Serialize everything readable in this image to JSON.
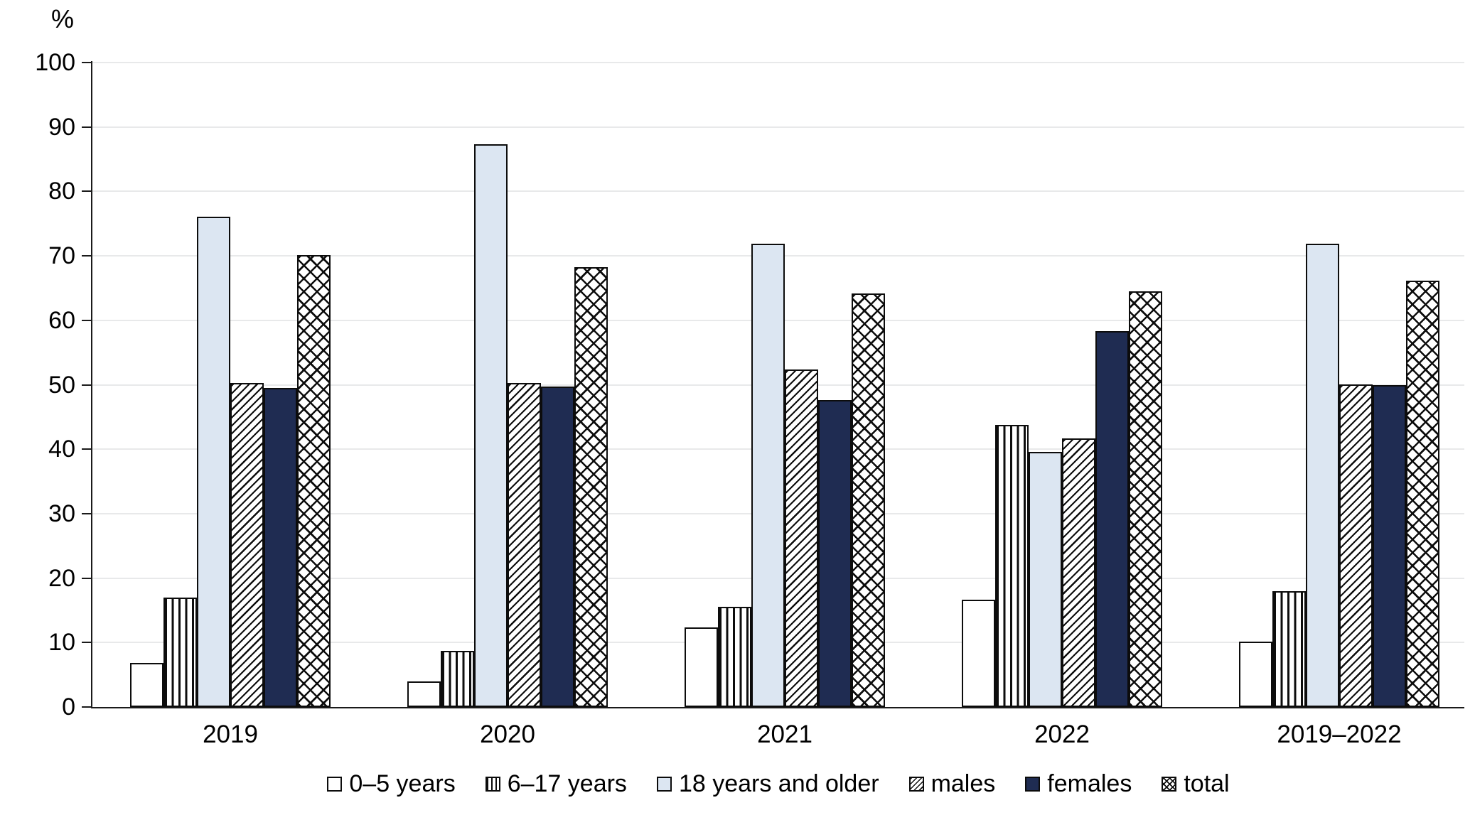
{
  "chart_data": {
    "type": "bar",
    "title": "",
    "ylabel": "%",
    "xlabel": "",
    "ylim": [
      0,
      100
    ],
    "ytick_step": 10,
    "yticks": [
      0,
      10,
      20,
      30,
      40,
      50,
      60,
      70,
      80,
      90,
      100
    ],
    "grid": true,
    "legend_position": "bottom",
    "categories": [
      "2019",
      "2020",
      "2021",
      "2022",
      "2019–2022"
    ],
    "series": [
      {
        "name": "0–5 years",
        "pattern": "plain",
        "fill": "#ffffff",
        "values": [
          6.8,
          4.0,
          12.3,
          16.7,
          10.1
        ]
      },
      {
        "name": "6–17 years",
        "pattern": "vertical-stripes",
        "fill": "#ffffff",
        "values": [
          17.0,
          8.7,
          15.5,
          43.8,
          18.0
        ]
      },
      {
        "name": "18 years and older",
        "pattern": "solid-light",
        "fill": "#dce6f2",
        "values": [
          76.1,
          87.3,
          71.9,
          39.6,
          71.9
        ]
      },
      {
        "name": "males",
        "pattern": "diagonal-stripes",
        "fill": "#ffffff",
        "values": [
          50.3,
          50.3,
          52.4,
          41.7,
          50.1
        ]
      },
      {
        "name": "females",
        "pattern": "solid-dark",
        "fill": "#1f2c52",
        "values": [
          49.5,
          49.7,
          47.6,
          58.3,
          49.9
        ]
      },
      {
        "name": "total",
        "pattern": "crosshatch",
        "fill": "#ffffff",
        "values": [
          70.1,
          68.2,
          64.2,
          64.5,
          66.1
        ]
      }
    ],
    "colors": {
      "light_blue": "#dce6f2",
      "dark_navy": "#1f2c52",
      "pattern_line": "#0d0d0d",
      "gridline": "#e8e9ea",
      "axis": "#1a1a1a",
      "text": "#000000"
    }
  }
}
